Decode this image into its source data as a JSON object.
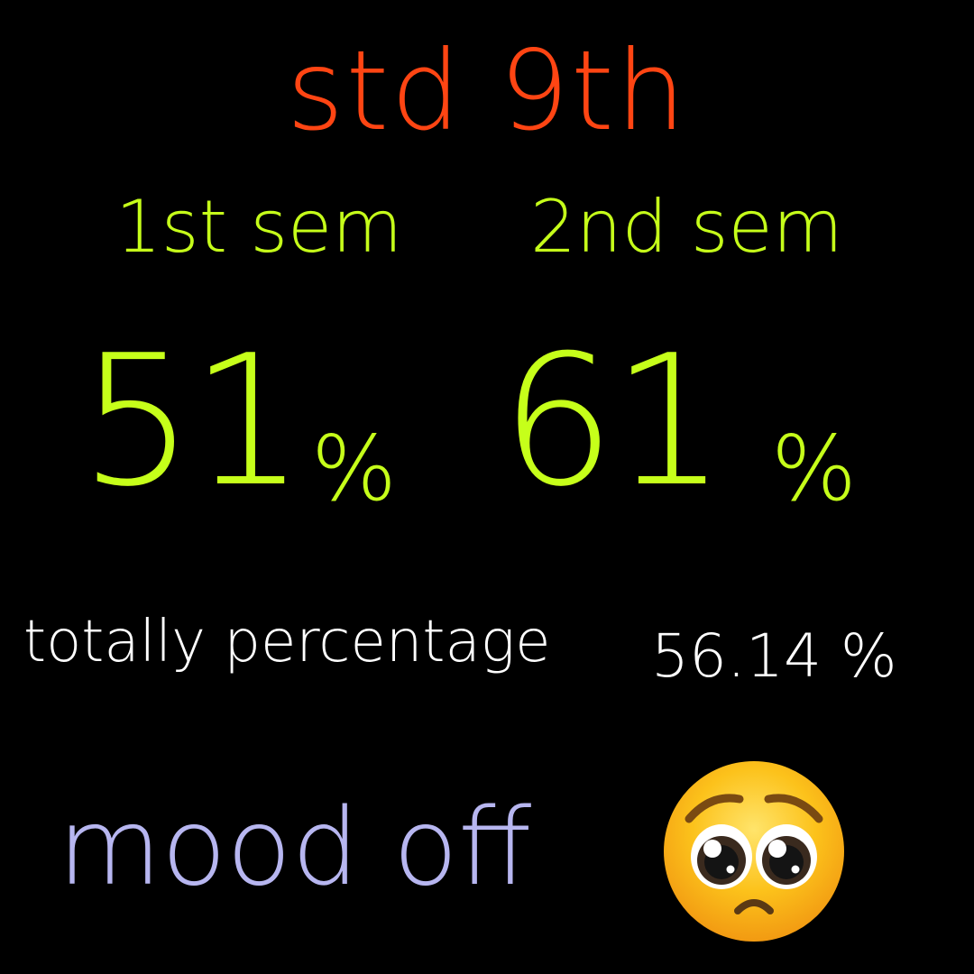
{
  "title": "std 9th",
  "semesters": [
    {
      "label": "1st sem",
      "value": "51",
      "unit": "%"
    },
    {
      "label": "2nd sem",
      "value": "61",
      "unit": "%"
    }
  ],
  "total": {
    "label": "totally percentage",
    "value": "56.14 %"
  },
  "mood": {
    "text": "mood off",
    "emoji_icon": "pleading-face-icon"
  },
  "colors": {
    "background": "#000000",
    "title": "#ff4513",
    "semester": "#c6ff1a",
    "total": "#ffffff",
    "mood": "#b7b6f0"
  }
}
